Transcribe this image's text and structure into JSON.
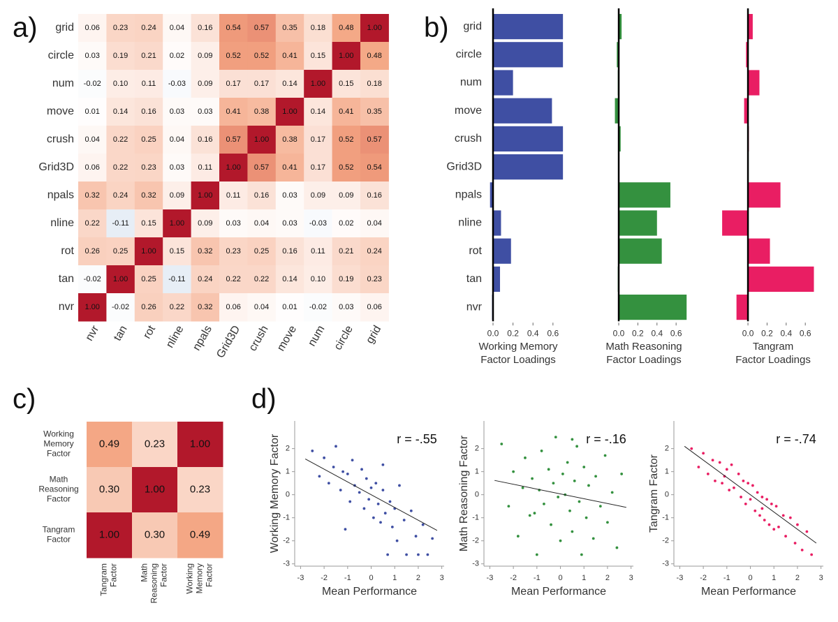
{
  "chart_data": [
    {
      "type": "heatmap",
      "panel_label": "a)",
      "x": [
        "nvr",
        "tan",
        "rot",
        "nline",
        "npals",
        "Grid3D",
        "crush",
        "move",
        "num",
        "circle",
        "grid"
      ],
      "y": [
        "grid",
        "circle",
        "num",
        "move",
        "crush",
        "Grid3D",
        "npals",
        "nline",
        "rot",
        "tan",
        "nvr"
      ],
      "values": [
        [
          0.06,
          0.23,
          0.24,
          0.04,
          0.16,
          0.54,
          0.57,
          0.35,
          0.18,
          0.48,
          1.0
        ],
        [
          0.03,
          0.19,
          0.21,
          0.02,
          0.09,
          0.52,
          0.52,
          0.41,
          0.15,
          1.0,
          0.48
        ],
        [
          -0.02,
          0.1,
          0.11,
          -0.03,
          0.09,
          0.17,
          0.17,
          0.14,
          1.0,
          0.15,
          0.18
        ],
        [
          0.01,
          0.14,
          0.16,
          0.03,
          0.03,
          0.41,
          0.38,
          1.0,
          0.14,
          0.41,
          0.35
        ],
        [
          0.04,
          0.22,
          0.25,
          0.04,
          0.16,
          0.57,
          1.0,
          0.38,
          0.17,
          0.52,
          0.57
        ],
        [
          0.06,
          0.22,
          0.23,
          0.03,
          0.11,
          1.0,
          0.57,
          0.41,
          0.17,
          0.52,
          0.54
        ],
        [
          0.32,
          0.24,
          0.32,
          0.09,
          1.0,
          0.11,
          0.16,
          0.03,
          0.09,
          0.09,
          0.16
        ],
        [
          0.22,
          -0.11,
          0.15,
          1.0,
          0.09,
          0.03,
          0.04,
          0.03,
          -0.03,
          0.02,
          0.04
        ],
        [
          0.26,
          0.25,
          1.0,
          0.15,
          0.32,
          0.23,
          0.25,
          0.16,
          0.11,
          0.21,
          0.24
        ],
        [
          -0.02,
          1.0,
          0.25,
          -0.11,
          0.24,
          0.22,
          0.22,
          0.14,
          0.1,
          0.19,
          0.23
        ],
        [
          1.0,
          -0.02,
          0.26,
          0.22,
          0.32,
          0.06,
          0.04,
          0.01,
          -0.02,
          0.03,
          0.06
        ]
      ],
      "value_labels": [
        [
          "0.06",
          "0.23",
          "0.24",
          "0.04",
          "0.16",
          "0.54",
          "0.57",
          "0.35",
          "0.18",
          "0.48",
          "1.00"
        ],
        [
          "0.03",
          "0.19",
          "0.21",
          "0.02",
          "0.09",
          "0.52",
          "0.52",
          "0.41",
          "0.15",
          "1.00",
          "0.48"
        ],
        [
          "-0.02",
          "0.10",
          "0.11",
          "-0.03",
          "0.09",
          "0.17",
          "0.17",
          "0.14",
          "1.00",
          "0.15",
          "0.18"
        ],
        [
          "0.01",
          "0.14",
          "0.16",
          "0.03",
          "0.03",
          "0.41",
          "0.38",
          "1.00",
          "0.14",
          "0.41",
          "0.35"
        ],
        [
          "0.04",
          "0.22",
          "0.25",
          "0.04",
          "0.16",
          "0.57",
          "1.00",
          "0.38",
          "0.17",
          "0.52",
          "0.57"
        ],
        [
          "0.06",
          "0.22",
          "0.23",
          "0.03",
          "0.11",
          "1.00",
          "0.57",
          "0.41",
          "0.17",
          "0.52",
          "0.54"
        ],
        [
          "0.32",
          "0.24",
          "0.32",
          "0.09",
          "1.00",
          "0.11",
          "0.16",
          "0.03",
          "0.09",
          "0.09",
          "0.16"
        ],
        [
          "0.22",
          "-0.11",
          "0.15",
          "1.00",
          "0.09",
          "0.03",
          "0.04",
          "0.03",
          "-0.03",
          "0.02",
          "0.04"
        ],
        [
          "0.26",
          "0.25",
          "1.00",
          "0.15",
          "0.32",
          "0.23",
          "0.25",
          "0.16",
          "0.11",
          "0.21",
          "0.24"
        ],
        [
          "-0.02",
          "1.00",
          "0.25",
          "-0.11",
          "0.24",
          "0.22",
          "0.22",
          "0.14",
          "0.10",
          "0.19",
          "0.23"
        ],
        [
          "1.00",
          "-0.02",
          "0.26",
          "0.22",
          "0.32",
          "0.06",
          "0.04",
          "0.01",
          "-0.02",
          "0.03",
          "0.06"
        ]
      ],
      "colorscale": [
        [
          -1,
          "#2166ac"
        ],
        [
          0,
          "#ffffff"
        ],
        [
          0.5,
          "#f4a582"
        ],
        [
          1,
          "#b2182b"
        ]
      ]
    },
    {
      "type": "hbar-panels",
      "panel_label": "b)",
      "categories": [
        "grid",
        "circle",
        "num",
        "move",
        "crush",
        "Grid3D",
        "npals",
        "nline",
        "rot",
        "tan",
        "nvr"
      ],
      "panels": [
        {
          "xlabel": [
            "Working Memory",
            "Factor Loadings"
          ],
          "color": "#3f4fa3",
          "values": [
            0.7,
            0.7,
            0.2,
            0.59,
            0.7,
            0.7,
            -0.03,
            0.08,
            0.18,
            0.07,
            -0.01
          ],
          "xlim": [
            -0.035,
            0.72
          ],
          "xticks": [
            {
              "value": 0,
              "label": "0.0"
            },
            {
              "value": 0.2,
              "label": "0.2"
            },
            {
              "value": 0.4,
              "label": "0.4"
            },
            {
              "value": 0.6,
              "label": "0.6"
            }
          ]
        },
        {
          "xlabel": [
            "Math Reasoning",
            "Factor Loadings"
          ],
          "color": "#34913f",
          "values": [
            0.03,
            -0.02,
            -0.01,
            -0.04,
            0.02,
            0.0,
            0.54,
            0.4,
            0.45,
            -0.01,
            0.71
          ],
          "xlim": [
            -0.06,
            0.72
          ],
          "xticks": [
            {
              "value": 0,
              "label": "0.0"
            },
            {
              "value": 0.2,
              "label": "0.2"
            },
            {
              "value": 0.4,
              "label": "0.4"
            },
            {
              "value": 0.6,
              "label": "0.6"
            }
          ]
        },
        {
          "xlabel": [
            "Tangram",
            "Factor Loadings"
          ],
          "color": "#e91e63",
          "values": [
            0.05,
            -0.02,
            0.12,
            -0.04,
            0.01,
            0.0,
            0.34,
            -0.27,
            0.23,
            0.69,
            -0.12
          ],
          "xlim": [
            -0.3,
            0.72
          ],
          "xticks": [
            {
              "value": 0,
              "label": "0.0"
            },
            {
              "value": 0.2,
              "label": "0.2"
            },
            {
              "value": 0.4,
              "label": "0.4"
            },
            {
              "value": 0.6,
              "label": "0.6"
            }
          ]
        }
      ]
    },
    {
      "type": "heatmap",
      "panel_label": "c)",
      "x": [
        [
          "Tangram",
          "Factor"
        ],
        [
          "Math",
          "Reasoning",
          "Factor"
        ],
        [
          "Working",
          "Memory",
          "Factor"
        ]
      ],
      "y": [
        [
          "Working",
          "Memory",
          "Factor"
        ],
        [
          "Math",
          "Reasoning",
          "Factor"
        ],
        [
          "Tangram",
          "Factor"
        ]
      ],
      "values": [
        [
          0.49,
          0.23,
          1.0
        ],
        [
          0.3,
          1.0,
          0.23
        ],
        [
          1.0,
          0.3,
          0.49
        ]
      ],
      "value_labels": [
        [
          "0.49",
          "0.23",
          "1.00"
        ],
        [
          "0.30",
          "1.00",
          "0.23"
        ],
        [
          "1.00",
          "0.30",
          "0.49"
        ]
      ],
      "colorscale": [
        [
          -1,
          "#2166ac"
        ],
        [
          0,
          "#ffffff"
        ],
        [
          0.5,
          "#f4a582"
        ],
        [
          1,
          "#b2182b"
        ]
      ]
    },
    {
      "type": "scatter",
      "panel_label": "d)",
      "xlabel": "Mean Performance",
      "ylabel": "Working Memory Factor",
      "annotation": "r = -.55",
      "color": "#3f4fa3",
      "x": [
        -2.5,
        -2.2,
        -2.0,
        -1.8,
        -1.6,
        -1.5,
        -1.3,
        -1.2,
        -1.0,
        -0.9,
        -0.8,
        -0.7,
        -0.5,
        -0.4,
        -0.3,
        -0.2,
        -0.1,
        0,
        0.1,
        0.2,
        0.3,
        0.4,
        0.5,
        0.6,
        0.7,
        0.8,
        0.9,
        1.0,
        1.1,
        1.2,
        1.4,
        1.5,
        1.7,
        1.9,
        2.0,
        2.2,
        2.4,
        2.6,
        -1.1,
        0.5
      ],
      "values": [
        1.9,
        0.8,
        1.6,
        0.5,
        1.2,
        2.1,
        0.2,
        1.0,
        0.9,
        -0.3,
        1.5,
        0.4,
        0.1,
        1.1,
        -0.6,
        0.7,
        -0.2,
        0.3,
        -1.0,
        0.5,
        -0.4,
        -1.2,
        0.2,
        -0.8,
        -2.6,
        -0.3,
        -1.4,
        -0.6,
        -2.0,
        0.4,
        -1.1,
        -2.6,
        -0.7,
        -1.8,
        -2.6,
        -1.3,
        -2.6,
        -1.9,
        -1.5,
        1.3
      ],
      "trend": {
        "x": [
          -2.8,
          2.8
        ],
        "values": [
          1.55,
          -1.55
        ]
      },
      "xlim": [
        -3.25,
        3.1
      ],
      "ylim": [
        -3.1,
        3.2
      ],
      "xticks": [
        -3,
        -2,
        -1,
        0,
        1,
        2,
        3
      ],
      "yticks": [
        -3,
        -2,
        -1,
        0,
        1,
        2
      ]
    },
    {
      "type": "scatter",
      "xlabel": "Mean Performance",
      "ylabel": "Math Reasoning Factor",
      "annotation": "r = -.16",
      "color": "#34913f",
      "x": [
        -2.5,
        -2.2,
        -2.0,
        -1.8,
        -1.6,
        -1.5,
        -1.3,
        -1.2,
        -1.0,
        -0.9,
        -0.8,
        -0.7,
        -0.5,
        -0.4,
        -0.3,
        -0.2,
        -0.1,
        0,
        0.1,
        0.2,
        0.3,
        0.4,
        0.5,
        0.6,
        0.7,
        0.8,
        0.9,
        1.0,
        1.1,
        1.2,
        1.4,
        1.5,
        1.7,
        1.9,
        2.0,
        2.2,
        2.4,
        2.6,
        -1.1,
        0.5
      ],
      "values": [
        2.2,
        -0.5,
        1.0,
        -1.8,
        0.3,
        1.6,
        -0.9,
        0.7,
        -2.6,
        0.2,
        1.9,
        -0.4,
        1.1,
        -1.3,
        0.5,
        2.5,
        -0.1,
        -2.0,
        0.9,
        0.0,
        1.4,
        -0.7,
        -1.6,
        0.6,
        2.1,
        -0.3,
        -2.6,
        1.2,
        -1.0,
        0.4,
        -1.9,
        0.8,
        -0.5,
        1.7,
        -1.2,
        0.1,
        -2.3,
        0.9,
        -0.8,
        2.4
      ],
      "trend": {
        "x": [
          -2.8,
          2.8
        ],
        "values": [
          0.62,
          -0.55
        ]
      },
      "xlim": [
        -3.25,
        3.1
      ],
      "ylim": [
        -3.1,
        3.2
      ],
      "xticks": [
        -3,
        -2,
        -1,
        0,
        1,
        2,
        3
      ],
      "yticks": [
        -3,
        -2,
        -1,
        0,
        1,
        2
      ]
    },
    {
      "type": "scatter",
      "xlabel": "Mean Performance",
      "ylabel": "Tangram Factor",
      "annotation": "r = -.74",
      "color": "#e91e63",
      "x": [
        -2.5,
        -2.2,
        -2.0,
        -1.8,
        -1.6,
        -1.5,
        -1.3,
        -1.2,
        -1.0,
        -0.9,
        -0.8,
        -0.7,
        -0.5,
        -0.4,
        -0.3,
        -0.2,
        -0.1,
        0,
        0.1,
        0.2,
        0.3,
        0.4,
        0.5,
        0.6,
        0.7,
        0.8,
        0.9,
        1.0,
        1.1,
        1.2,
        1.4,
        1.5,
        1.7,
        1.9,
        2.0,
        2.2,
        2.4,
        2.6,
        -1.1,
        0.5
      ],
      "values": [
        2.0,
        1.2,
        1.8,
        0.9,
        1.5,
        0.6,
        1.4,
        0.5,
        1.1,
        0.2,
        1.3,
        0.3,
        0.9,
        -0.1,
        0.6,
        -0.4,
        0.5,
        -0.2,
        0.4,
        -0.7,
        0.1,
        -0.9,
        -0.1,
        -1.1,
        -0.2,
        -1.3,
        -0.4,
        -1.5,
        -0.5,
        -1.4,
        -0.9,
        -1.8,
        -1.0,
        -2.1,
        -1.3,
        -2.4,
        -1.6,
        -2.6,
        0.8,
        -0.6
      ],
      "trend": {
        "x": [
          -2.8,
          2.8
        ],
        "values": [
          2.1,
          -2.1
        ]
      },
      "xlim": [
        -3.25,
        3.1
      ],
      "ylim": [
        -3.1,
        3.2
      ],
      "xticks": [
        -3,
        -2,
        -1,
        0,
        1,
        2,
        3
      ],
      "yticks": [
        -3,
        -2,
        -1,
        0,
        1,
        2
      ]
    }
  ]
}
